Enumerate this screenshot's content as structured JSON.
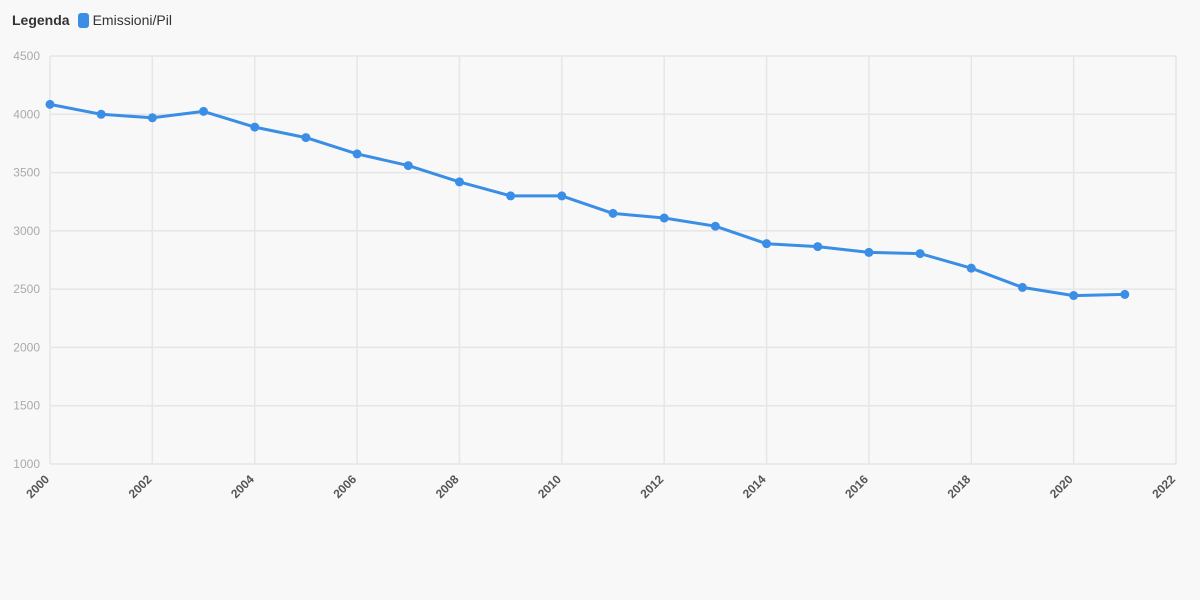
{
  "legend": {
    "title": "Legenda",
    "items": [
      {
        "label": "Emissioni/Pil",
        "color": "#3a8ee6"
      }
    ]
  },
  "chart_data": {
    "type": "line",
    "title": "",
    "xlabel": "",
    "ylabel": "",
    "xlim": [
      2000,
      2022
    ],
    "ylim": [
      1000,
      4500
    ],
    "xticks": [
      2000,
      2002,
      2004,
      2006,
      2008,
      2010,
      2012,
      2014,
      2016,
      2018,
      2020,
      2022
    ],
    "yticks": [
      1000,
      1500,
      2000,
      2500,
      3000,
      3500,
      4000,
      4500
    ],
    "grid": true,
    "legend_position": "top-left",
    "series": [
      {
        "name": "Emissioni/Pil",
        "color": "#3a8ee6",
        "x": [
          2000,
          2001,
          2002,
          2003,
          2004,
          2005,
          2006,
          2007,
          2008,
          2009,
          2010,
          2011,
          2012,
          2013,
          2014,
          2015,
          2016,
          2017,
          2018,
          2019,
          2020,
          2021
        ],
        "y": [
          4085,
          4000,
          3970,
          4025,
          3890,
          3800,
          3660,
          3560,
          3420,
          3300,
          3300,
          3150,
          3110,
          3040,
          2890,
          2865,
          2815,
          2805,
          2680,
          2515,
          2445,
          2455
        ]
      }
    ]
  }
}
